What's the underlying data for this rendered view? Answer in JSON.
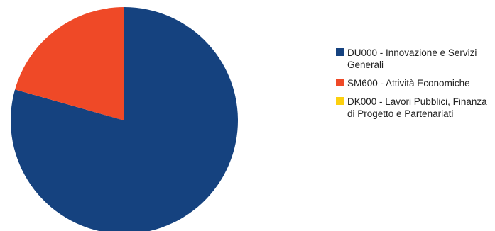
{
  "chart_data": {
    "type": "pie",
    "categories": [
      "DU000 - Innovazione e Servizi Generali",
      "SM600 - Attività Economiche",
      "DK000 - Lavori Pubblici, Finanza di Progetto e Partenariati"
    ],
    "values": [
      79.4,
      20.6,
      0
    ],
    "colors": [
      "#15427f",
      "#ef4927",
      "#fcd00f"
    ],
    "legend_position": "right",
    "start_angle_deg": 0,
    "direction": "clockwise"
  }
}
